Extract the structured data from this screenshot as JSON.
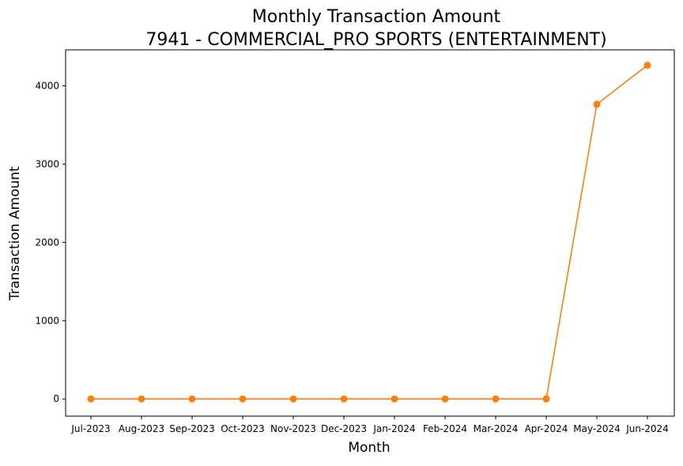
{
  "chart_data": {
    "type": "line",
    "title": "Monthly Transaction Amount",
    "subtitle": "7941 - COMMERCIAL_PRO SPORTS (ENTERTAINMENT)",
    "xlabel": "Month",
    "ylabel": "Transaction Amount",
    "categories": [
      "Jul-2023",
      "Aug-2023",
      "Sep-2023",
      "Oct-2023",
      "Nov-2023",
      "Dec-2023",
      "Jan-2024",
      "Feb-2024",
      "Mar-2024",
      "Apr-2024",
      "May-2024",
      "Jun-2024"
    ],
    "series": [
      {
        "values": [
          0,
          0,
          0,
          0,
          0,
          0,
          0,
          0,
          0,
          0,
          3765,
          4263
        ],
        "color": "#ff7f0e"
      }
    ],
    "yticks": [
      0,
      1000,
      2000,
      3000,
      4000
    ],
    "ylim": [
      -220,
      4460
    ],
    "grid": false,
    "legend": "none"
  }
}
